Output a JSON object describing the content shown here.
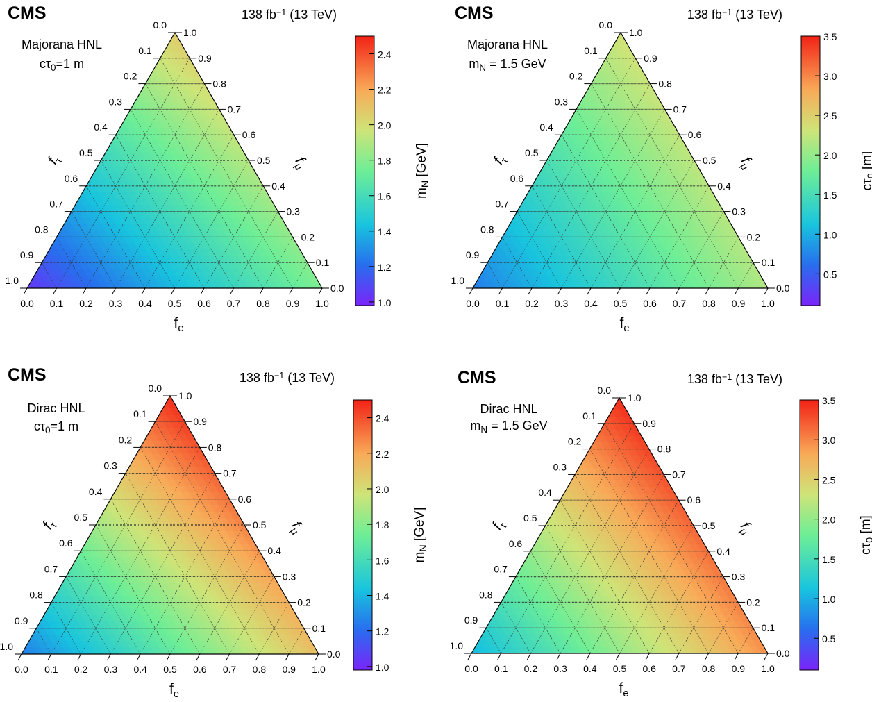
{
  "panels": [
    {
      "id": "top-left",
      "experiment": "CMS",
      "lumi": {
        "value": "138 fb",
        "sup": "−1",
        "energy": " (13 TeV)"
      },
      "label_lines": [
        [
          {
            "t": "Majorana HNL"
          }
        ],
        [
          {
            "t": "cτ"
          },
          {
            "t": "0",
            "sub": true
          },
          {
            "t": "=1 m"
          }
        ]
      ],
      "colorbar": {
        "title_parts": [
          {
            "t": "m"
          },
          {
            "t": "N",
            "sub": true
          },
          {
            "t": " [GeV]"
          }
        ],
        "range": [
          0.98,
          2.5
        ],
        "ticks": [
          "1.0",
          "1.2",
          "1.4",
          "1.6",
          "1.8",
          "2.0",
          "2.2",
          "2.4"
        ]
      }
    },
    {
      "id": "top-right",
      "experiment": "CMS",
      "lumi": {
        "value": "138 fb",
        "sup": "−1",
        "energy": " (13 TeV)"
      },
      "label_lines": [
        [
          {
            "t": "Majorana HNL"
          }
        ],
        [
          {
            "t": "m"
          },
          {
            "t": "N",
            "sub": true
          },
          {
            "t": " = 1.5 GeV"
          }
        ]
      ],
      "colorbar": {
        "title_parts": [
          {
            "t": "cτ"
          },
          {
            "t": "0",
            "sub": true
          },
          {
            "t": " [m]"
          }
        ],
        "range": [
          0.1,
          3.5
        ],
        "ticks": [
          "0.5",
          "1.0",
          "1.5",
          "2.0",
          "2.5",
          "3.0",
          "3.5"
        ]
      }
    },
    {
      "id": "bottom-left",
      "experiment": "CMS",
      "lumi": {
        "value": "138 fb",
        "sup": "−1",
        "energy": " (13 TeV)"
      },
      "label_lines": [
        [
          {
            "t": "Dirac HNL"
          }
        ],
        [
          {
            "t": "cτ"
          },
          {
            "t": "0",
            "sub": true
          },
          {
            "t": "=1 m"
          }
        ]
      ],
      "colorbar": {
        "title_parts": [
          {
            "t": "m"
          },
          {
            "t": "N",
            "sub": true
          },
          {
            "t": " [GeV]"
          }
        ],
        "range": [
          0.98,
          2.5
        ],
        "ticks": [
          "1.0",
          "1.2",
          "1.4",
          "1.6",
          "1.8",
          "2.0",
          "2.2",
          "2.4"
        ]
      }
    },
    {
      "id": "bottom-right",
      "experiment": "CMS",
      "lumi": {
        "value": "138 fb",
        "sup": "−1",
        "energy": " (13 TeV)"
      },
      "label_lines": [
        [
          {
            "t": "Dirac HNL"
          }
        ],
        [
          {
            "t": "m"
          },
          {
            "t": "N",
            "sub": true
          },
          {
            "t": " = 1.5 GeV"
          }
        ]
      ],
      "colorbar": {
        "title_parts": [
          {
            "t": "cτ"
          },
          {
            "t": "0",
            "sub": true
          },
          {
            "t": " [m]"
          }
        ],
        "range": [
          0.1,
          3.5
        ],
        "ticks": [
          "0.5",
          "1.0",
          "1.5",
          "2.0",
          "2.5",
          "3.0",
          "3.5"
        ]
      }
    }
  ],
  "chart_data": [
    {
      "type": "heatmap",
      "subtype": "ternary",
      "title": "Majorana HNL, cτ0=1 m",
      "axes": {
        "bottom": "fe",
        "left": "fτ",
        "right": "fμ"
      },
      "axis_ticks": [
        "0.0",
        "0.1",
        "0.2",
        "0.3",
        "0.4",
        "0.5",
        "0.6",
        "0.7",
        "0.8",
        "0.9",
        "1.0"
      ],
      "colorbar_label": "mN [GeV]",
      "color_range": [
        0.98,
        2.5
      ],
      "colorscale": "rainbow (purple-blue-cyan-green-yellow-orange-red)",
      "vertex_values": {
        "mu_corner": 2.07,
        "tau_corner": 1.04,
        "e_corner": 1.78
      },
      "interpolation": "smooth"
    },
    {
      "type": "heatmap",
      "subtype": "ternary",
      "title": "Majorana HNL, mN = 1.5 GeV",
      "axes": {
        "bottom": "fe",
        "left": "fτ",
        "right": "fμ"
      },
      "axis_ticks": [
        "0.0",
        "0.1",
        "0.2",
        "0.3",
        "0.4",
        "0.5",
        "0.6",
        "0.7",
        "0.8",
        "0.9",
        "1.0"
      ],
      "colorbar_label": "cτ0 [m]",
      "color_range": [
        0.1,
        3.5
      ],
      "colorscale": "rainbow (purple-blue-cyan-green-yellow-orange-red)",
      "vertex_values": {
        "mu_corner": 2.35,
        "tau_corner": 0.7,
        "e_corner": 2.15
      },
      "interpolation": "smooth"
    },
    {
      "type": "heatmap",
      "subtype": "ternary",
      "title": "Dirac HNL, cτ0=1 m",
      "axes": {
        "bottom": "fe",
        "left": "fτ",
        "right": "fμ"
      },
      "axis_ticks": [
        "0.0",
        "0.1",
        "0.2",
        "0.3",
        "0.4",
        "0.5",
        "0.6",
        "0.7",
        "0.8",
        "0.9",
        "1.0"
      ],
      "colorbar_label": "mN [GeV]",
      "color_range": [
        0.98,
        2.5
      ],
      "colorscale": "rainbow (purple-blue-cyan-green-yellow-orange-red)",
      "vertex_values": {
        "mu_corner": 2.48,
        "tau_corner": 1.25,
        "e_corner": 2.12
      },
      "interpolation": "smooth"
    },
    {
      "type": "heatmap",
      "subtype": "ternary",
      "title": "Dirac HNL, mN = 1.5 GeV",
      "axes": {
        "bottom": "fe",
        "left": "fτ",
        "right": "fμ"
      },
      "axis_ticks": [
        "0.0",
        "0.1",
        "0.2",
        "0.3",
        "0.4",
        "0.5",
        "0.6",
        "0.7",
        "0.8",
        "0.9",
        "1.0"
      ],
      "colorbar_label": "cτ0 [m]",
      "color_range": [
        0.1,
        3.5
      ],
      "colorscale": "rainbow (purple-blue-cyan-green-yellow-orange-red)",
      "vertex_values": {
        "mu_corner": 3.45,
        "tau_corner": 1.05,
        "e_corner": 2.95
      },
      "interpolation": "smooth"
    }
  ]
}
